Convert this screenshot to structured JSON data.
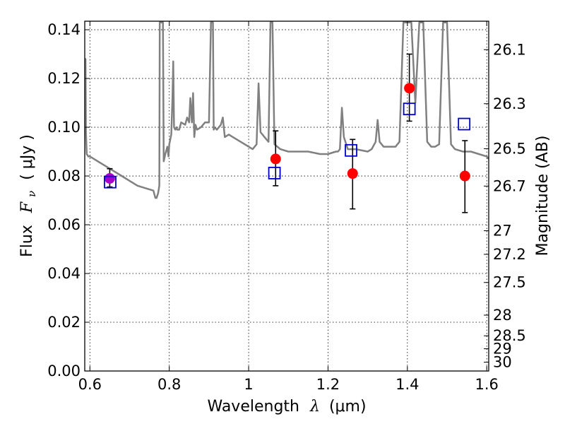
{
  "chart_data": {
    "type": "scatter",
    "x_axis": {
      "label_prefix": "Wavelength",
      "label_symbol": "λ",
      "label_unit": "(μm)",
      "range": [
        0.587,
        1.605
      ],
      "ticks": [
        {
          "value": 0.6,
          "label": "0.6"
        },
        {
          "value": 0.8,
          "label": "0.8"
        },
        {
          "value": 1.0,
          "label": "1"
        },
        {
          "value": 1.2,
          "label": "1.2"
        },
        {
          "value": 1.4,
          "label": "1.4"
        },
        {
          "value": 1.6,
          "label": "1.6"
        }
      ]
    },
    "y_axis": {
      "label_prefix": "Flux",
      "label_symbol": "F",
      "label_subscript": "ν",
      "label_unit": "( μJy )",
      "range": [
        0.0,
        0.1435
      ],
      "ticks": [
        {
          "value": 0.0,
          "label": "0.00"
        },
        {
          "value": 0.02,
          "label": "0.02"
        },
        {
          "value": 0.04,
          "label": "0.04"
        },
        {
          "value": 0.06,
          "label": "0.06"
        },
        {
          "value": 0.08,
          "label": "0.08"
        },
        {
          "value": 0.1,
          "label": "0.10"
        },
        {
          "value": 0.12,
          "label": "0.12"
        },
        {
          "value": 0.14,
          "label": "0.14"
        }
      ]
    },
    "y2_axis": {
      "label": "Magnitude (AB)",
      "ticks": [
        {
          "flux": 0.13183,
          "label": "26.1"
        },
        {
          "flux": 0.10965,
          "label": "26.3"
        },
        {
          "flux": 0.0912,
          "label": "26.5"
        },
        {
          "flux": 0.07586,
          "label": "26.7"
        },
        {
          "flux": 0.05754,
          "label": "27"
        },
        {
          "flux": 0.04786,
          "label": "27.2"
        },
        {
          "flux": 0.03631,
          "label": "27.5"
        },
        {
          "flux": 0.02291,
          "label": "28"
        },
        {
          "flux": 0.01445,
          "label": "28.5"
        },
        {
          "flux": 0.00912,
          "label": "29"
        },
        {
          "flux": 0.00363,
          "label": "30"
        }
      ]
    },
    "grid": true,
    "model_spectrum": {
      "color": "#808080",
      "x": [
        0.587,
        0.589,
        0.59,
        0.592,
        0.596,
        0.6,
        0.62,
        0.64,
        0.66,
        0.68,
        0.7,
        0.72,
        0.74,
        0.76,
        0.765,
        0.768,
        0.772,
        0.775,
        0.776,
        0.778,
        0.782,
        0.784,
        0.786,
        0.79,
        0.795,
        0.798,
        0.8,
        0.805,
        0.808,
        0.81,
        0.812,
        0.815,
        0.818,
        0.82,
        0.825,
        0.83,
        0.84,
        0.845,
        0.85,
        0.853,
        0.857,
        0.86,
        0.863,
        0.866,
        0.87,
        0.88,
        0.89,
        0.9,
        0.905,
        0.908,
        0.91,
        0.912,
        0.914,
        0.92,
        0.93,
        0.935,
        0.94,
        0.95,
        0.96,
        0.98,
        1.0,
        1.01,
        1.02,
        1.025,
        1.03,
        1.04,
        1.05,
        1.055,
        1.06,
        1.065,
        1.08,
        1.1,
        1.12,
        1.15,
        1.18,
        1.2,
        1.22,
        1.225,
        1.23,
        1.235,
        1.24,
        1.25,
        1.26,
        1.27,
        1.3,
        1.31,
        1.32,
        1.325,
        1.33,
        1.34,
        1.35,
        1.36,
        1.37,
        1.38,
        1.39,
        1.4,
        1.41,
        1.42,
        1.43,
        1.44,
        1.45,
        1.46,
        1.47,
        1.48,
        1.49,
        1.5,
        1.51,
        1.52,
        1.54,
        1.56,
        1.58,
        1.6,
        1.605
      ],
      "y": [
        0.118,
        0.128,
        0.098,
        0.089,
        0.088,
        0.088,
        0.086,
        0.084,
        0.082,
        0.08,
        0.078,
        0.076,
        0.075,
        0.074,
        0.071,
        0.071,
        0.073,
        0.076,
        0.143,
        0.143,
        0.143,
        0.143,
        0.086,
        0.089,
        0.092,
        0.088,
        0.093,
        0.097,
        0.112,
        0.127,
        0.1,
        0.099,
        0.1,
        0.099,
        0.099,
        0.102,
        0.101,
        0.104,
        0.102,
        0.112,
        0.102,
        0.114,
        0.096,
        0.101,
        0.099,
        0.1,
        0.102,
        0.102,
        0.143,
        0.143,
        0.143,
        0.099,
        0.1,
        0.099,
        0.101,
        0.104,
        0.096,
        0.097,
        0.096,
        0.094,
        0.092,
        0.091,
        0.093,
        0.118,
        0.098,
        0.096,
        0.094,
        0.143,
        0.143,
        0.093,
        0.091,
        0.09,
        0.09,
        0.09,
        0.089,
        0.089,
        0.09,
        0.09,
        0.091,
        0.108,
        0.096,
        0.091,
        0.091,
        0.091,
        0.09,
        0.091,
        0.094,
        0.103,
        0.094,
        0.092,
        0.092,
        0.092,
        0.092,
        0.094,
        0.143,
        0.143,
        0.143,
        0.11,
        0.143,
        0.143,
        0.094,
        0.092,
        0.092,
        0.093,
        0.143,
        0.143,
        0.093,
        0.091,
        0.09,
        0.09,
        0.089,
        0.088,
        0.087
      ]
    },
    "series": [
      {
        "marker": "circle",
        "color": "#ff0000",
        "points": [
          {
            "x": 0.65,
            "y": 0.079,
            "yerr_low": 0.0755,
            "yerr_high": 0.083
          },
          {
            "x": 1.068,
            "y": 0.087,
            "yerr_low": 0.076,
            "yerr_high": 0.0985
          },
          {
            "x": 1.262,
            "y": 0.081,
            "yerr_low": 0.0665,
            "yerr_high": 0.095
          },
          {
            "x": 1.405,
            "y": 0.116,
            "yerr_low": 0.1025,
            "yerr_high": 0.13
          },
          {
            "x": 1.545,
            "y": 0.08,
            "yerr_low": 0.065,
            "yerr_high": 0.0945
          }
        ]
      },
      {
        "marker": "square-open",
        "color": "#0000cc",
        "points": [
          {
            "x": 0.651,
            "y": 0.0775
          },
          {
            "x": 1.065,
            "y": 0.0812
          },
          {
            "x": 1.258,
            "y": 0.0905
          },
          {
            "x": 1.405,
            "y": 0.1075
          },
          {
            "x": 1.543,
            "y": 0.1013
          }
        ]
      }
    ],
    "overlap_color": "#aa00cc"
  }
}
